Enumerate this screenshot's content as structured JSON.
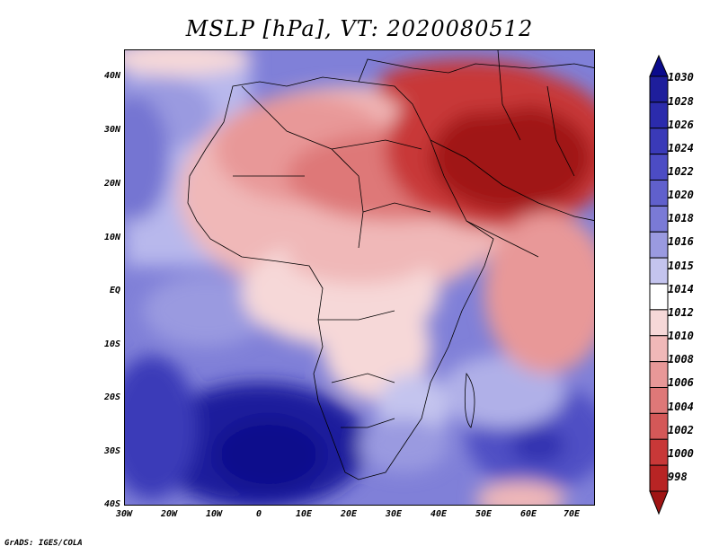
{
  "title": "MSLP [hPa], VT: 2020080512",
  "credit": "GrADS: IGES/COLA",
  "latitude_labels": [
    "40N",
    "30N",
    "20N",
    "10N",
    "EQ",
    "10S",
    "20S",
    "30S",
    "40S"
  ],
  "longitude_labels": [
    "30W",
    "20W",
    "10W",
    "0",
    "10E",
    "20E",
    "30E",
    "40E",
    "50E",
    "60E",
    "70E"
  ],
  "colorbar": {
    "levels": [
      "1030",
      "1028",
      "1026",
      "1024",
      "1022",
      "1020",
      "1018",
      "1016",
      "1015",
      "1014",
      "1012",
      "1010",
      "1008",
      "1006",
      "1004",
      "1002",
      "1000",
      "998"
    ],
    "colors": [
      "#0a0a8c",
      "#1e1e9c",
      "#2b2bac",
      "#3a3ab8",
      "#4c4cc4",
      "#6060cc",
      "#7a7ad6",
      "#9a9ae0",
      "#c4c4ee",
      "#ffffff",
      "#f6d8d8",
      "#f0b8b8",
      "#e89898",
      "#de7878",
      "#d45858",
      "#c83838",
      "#b82424",
      "#a01414"
    ]
  }
}
